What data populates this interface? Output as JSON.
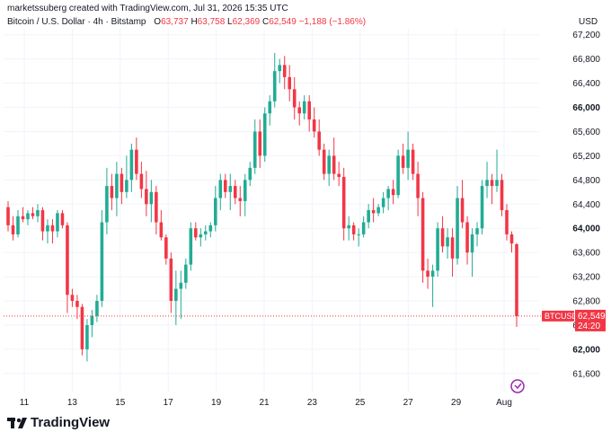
{
  "header": {
    "attribution": "marketssuberg created with TradingView.com, Jul 31, 2026 15:35 UTC",
    "symbol": "Bitcoin / U.S. Dollar · 4h · Bitstamp",
    "o_label": "O",
    "o_value": "63,737",
    "h_label": "H",
    "h_value": "63,758",
    "l_label": "L",
    "l_value": "62,369",
    "c_label": "C",
    "c_value": "62,549",
    "change": "−1,188 (−1.86%)"
  },
  "currency": "USD",
  "price_tag": {
    "symbol": "BTCUSD",
    "price": "62,549",
    "countdown": "24:20"
  },
  "brand": "TradingView",
  "colors": {
    "up": "#22ab94",
    "down": "#f23645",
    "grid": "#f0f3fa",
    "axis_text": "#131722"
  },
  "chart_data": {
    "type": "candlestick",
    "x_ticks": [
      "11",
      "13",
      "15",
      "17",
      "19",
      "21",
      "23",
      "25",
      "27",
      "29",
      "Aug"
    ],
    "y_ticks": [
      "67,200",
      "66,800",
      "66,400",
      "66,000",
      "65,600",
      "65,200",
      "64,800",
      "64,400",
      "64,000",
      "63,600",
      "63,200",
      "62,800",
      "62,400",
      "62,000",
      "61,600"
    ],
    "ylim": [
      61300,
      67300
    ],
    "last_price": 62549,
    "candles": [
      [
        64350,
        64450,
        63950,
        64050
      ],
      [
        64050,
        64200,
        63800,
        63900
      ],
      [
        63900,
        64300,
        63850,
        64200
      ],
      [
        64200,
        64350,
        64100,
        64150
      ],
      [
        64150,
        64300,
        64050,
        64250
      ],
      [
        64250,
        64350,
        64150,
        64200
      ],
      [
        64200,
        64400,
        64100,
        64300
      ],
      [
        64300,
        64350,
        63800,
        63950
      ],
      [
        63950,
        64150,
        63750,
        64050
      ],
      [
        64050,
        64150,
        63750,
        63950
      ],
      [
        63950,
        64300,
        63850,
        64250
      ],
      [
        64250,
        64300,
        64000,
        64050
      ],
      [
        64050,
        64100,
        62600,
        62900
      ],
      [
        62900,
        63000,
        62700,
        62800
      ],
      [
        62800,
        62900,
        62500,
        62700
      ],
      [
        62700,
        62750,
        61900,
        62000
      ],
      [
        62000,
        62500,
        61800,
        62400
      ],
      [
        62400,
        62650,
        62200,
        62550
      ],
      [
        62550,
        62900,
        62450,
        62800
      ],
      [
        62800,
        64300,
        62700,
        64100
      ],
      [
        64100,
        65000,
        63900,
        64700
      ],
      [
        64700,
        64900,
        64300,
        64500
      ],
      [
        64500,
        65100,
        64200,
        64900
      ],
      [
        64900,
        65000,
        64400,
        64600
      ],
      [
        64600,
        65200,
        64500,
        64800
      ],
      [
        64800,
        65400,
        64600,
        65300
      ],
      [
        65300,
        65500,
        64800,
        64900
      ],
      [
        64900,
        65100,
        64500,
        64650
      ],
      [
        64650,
        64950,
        64200,
        64400
      ],
      [
        64400,
        64800,
        64100,
        64600
      ],
      [
        64600,
        64700,
        63900,
        64100
      ],
      [
        64100,
        64300,
        63800,
        63850
      ],
      [
        63850,
        63900,
        63400,
        63500
      ],
      [
        63500,
        63600,
        62600,
        62800
      ],
      [
        62800,
        63300,
        62400,
        63000
      ],
      [
        63000,
        63300,
        62500,
        63100
      ],
      [
        63100,
        63500,
        63000,
        63400
      ],
      [
        63400,
        64100,
        63300,
        64000
      ],
      [
        64000,
        64100,
        63800,
        63850
      ],
      [
        63850,
        64000,
        63700,
        63900
      ],
      [
        63900,
        64050,
        63800,
        63950
      ],
      [
        63950,
        64100,
        63850,
        64050
      ],
      [
        64050,
        64700,
        63950,
        64500
      ],
      [
        64500,
        64900,
        64300,
        64800
      ],
      [
        64800,
        64900,
        64500,
        64600
      ],
      [
        64600,
        64900,
        64300,
        64700
      ],
      [
        64700,
        64800,
        64400,
        64500
      ],
      [
        64500,
        64700,
        64200,
        64450
      ],
      [
        64450,
        64900,
        64200,
        64800
      ],
      [
        64800,
        65100,
        64700,
        65000
      ],
      [
        65000,
        65800,
        64900,
        65600
      ],
      [
        65600,
        65800,
        65000,
        65200
      ],
      [
        65200,
        66000,
        65100,
        65900
      ],
      [
        65900,
        66200,
        65700,
        66100
      ],
      [
        66100,
        66900,
        66000,
        66600
      ],
      [
        66600,
        66800,
        66400,
        66700
      ],
      [
        66700,
        66850,
        66300,
        66500
      ],
      [
        66500,
        66700,
        66100,
        66300
      ],
      [
        66300,
        66500,
        65800,
        66000
      ],
      [
        66000,
        66100,
        65700,
        65900
      ],
      [
        65900,
        66200,
        65800,
        66100
      ],
      [
        66100,
        66200,
        65600,
        65800
      ],
      [
        65800,
        66000,
        65500,
        65600
      ],
      [
        65600,
        65800,
        65200,
        65300
      ],
      [
        65300,
        65400,
        64800,
        64900
      ],
      [
        64900,
        65300,
        64700,
        65200
      ],
      [
        65200,
        65500,
        64800,
        64900
      ],
      [
        64900,
        65100,
        64700,
        64850
      ],
      [
        64850,
        65000,
        63800,
        64000
      ],
      [
        64000,
        64200,
        63800,
        64050
      ],
      [
        64050,
        64100,
        63800,
        63900
      ],
      [
        63900,
        64000,
        63700,
        63900
      ],
      [
        63900,
        64200,
        63850,
        64100
      ],
      [
        64100,
        64400,
        64000,
        64300
      ],
      [
        64300,
        64500,
        64100,
        64250
      ],
      [
        64250,
        64400,
        64200,
        64350
      ],
      [
        64350,
        64600,
        64250,
        64500
      ],
      [
        64500,
        64700,
        64300,
        64650
      ],
      [
        64650,
        64800,
        64400,
        64550
      ],
      [
        64550,
        65300,
        64500,
        65200
      ],
      [
        65200,
        65400,
        64900,
        65000
      ],
      [
        65000,
        65600,
        64800,
        65300
      ],
      [
        65300,
        65400,
        64800,
        64900
      ],
      [
        64900,
        65100,
        64200,
        64500
      ],
      [
        64500,
        64600,
        63100,
        63300
      ],
      [
        63300,
        63500,
        63000,
        63200
      ],
      [
        63200,
        63400,
        62700,
        63300
      ],
      [
        63300,
        64100,
        63200,
        64000
      ],
      [
        64000,
        64200,
        63600,
        63700
      ],
      [
        63700,
        64000,
        63500,
        63850
      ],
      [
        63850,
        64000,
        63200,
        63500
      ],
      [
        63500,
        64700,
        63400,
        64500
      ],
      [
        64500,
        64800,
        64000,
        64100
      ],
      [
        64100,
        64200,
        63400,
        63600
      ],
      [
        63600,
        64000,
        63200,
        63900
      ],
      [
        63900,
        64100,
        63700,
        64000
      ],
      [
        64000,
        64800,
        63900,
        64700
      ],
      [
        64700,
        65100,
        64500,
        64800
      ],
      [
        64800,
        64900,
        64400,
        64700
      ],
      [
        64700,
        65300,
        64600,
        64800
      ],
      [
        64800,
        64900,
        64200,
        64300
      ],
      [
        64300,
        64400,
        63800,
        63900
      ],
      [
        63900,
        63950,
        63600,
        63750
      ],
      [
        63737,
        63758,
        62369,
        62549
      ]
    ]
  }
}
